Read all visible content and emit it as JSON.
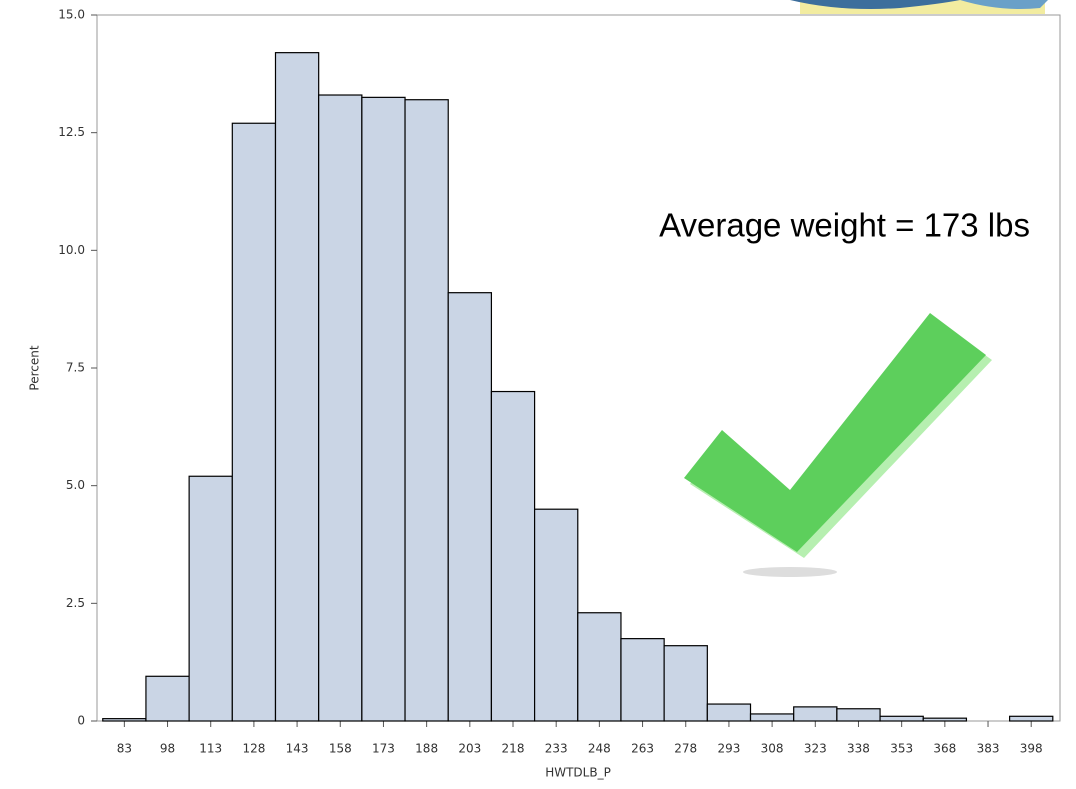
{
  "chart_data": {
    "type": "histogram",
    "annotation": "Average weight = 173 lbs",
    "x_label": "HWTDLB_P",
    "y_label": "Percent",
    "bins": [
      75.5,
      90.5,
      105.5,
      120.5,
      135.5,
      150.5,
      165.5,
      180.5,
      195.5,
      210.5,
      225.5,
      240.5,
      255.5,
      270.5,
      285.5,
      300.5,
      315.5,
      330.5,
      345.5,
      360.5,
      375.5,
      390.5,
      405.5
    ],
    "values": [
      0.05,
      0.95,
      5.2,
      12.7,
      14.2,
      13.3,
      13.25,
      13.2,
      9.1,
      7.0,
      4.5,
      2.3,
      1.75,
      1.6,
      0.36,
      0.15,
      0.3,
      0.26,
      0.1,
      0.06,
      0,
      0.1
    ],
    "color": "#cad5e5",
    "xlim": [
      73.5,
      408
    ],
    "xticks": [
      83,
      98,
      113,
      128,
      143,
      158,
      173,
      188,
      203,
      218,
      233,
      248,
      263,
      278,
      293,
      308,
      323,
      338,
      353,
      368,
      383,
      398
    ],
    "ylim": [
      0,
      15
    ],
    "yticks": [
      0,
      2.5,
      {
        "value": 5,
        "label": "5.0"
      },
      7.5,
      {
        "value": 10,
        "label": "10.0"
      },
      12.5,
      {
        "value": 15,
        "label": "15.0"
      }
    ],
    "grid": false
  }
}
